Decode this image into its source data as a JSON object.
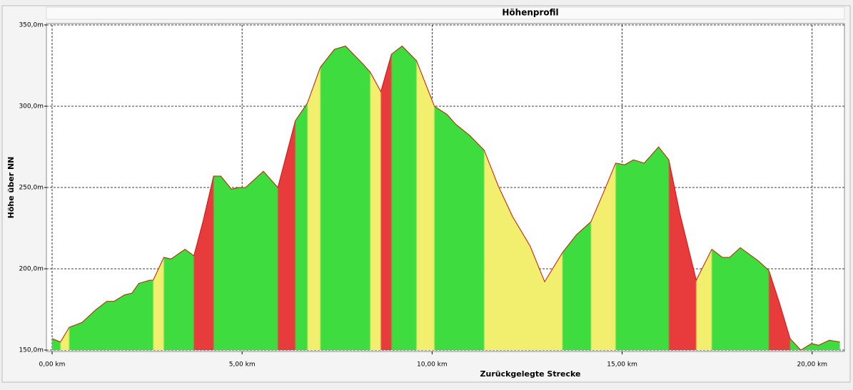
{
  "chart_data": {
    "type": "area",
    "title": "Höhenprofil",
    "x_label": "Zurückgelegte Strecke",
    "y_label": "Höhe über NN",
    "x": [
      0,
      0.22,
      0.45,
      0.79,
      1.16,
      1.44,
      1.63,
      1.91,
      2.1,
      2.28,
      2.57,
      2.66,
      2.94,
      3.13,
      3.31,
      3.5,
      3.73,
      3.97,
      4.25,
      4.44,
      4.72,
      4.91,
      5.09,
      5.56,
      5.94,
      6.4,
      6.72,
      7.06,
      7.43,
      7.72,
      8.18,
      8.37,
      8.65,
      8.93,
      9.21,
      9.59,
      10.06,
      10.39,
      10.62,
      10.99,
      11.37,
      11.74,
      12.12,
      12.58,
      12.96,
      13.43,
      13.8,
      14.18,
      14.51,
      14.83,
      15.07,
      15.3,
      15.58,
      15.96,
      16.23,
      16.52,
      16.95,
      17.36,
      17.64,
      17.83,
      18.11,
      18.58,
      18.86,
      19.14,
      19.42,
      19.7,
      19.98,
      20.17,
      20.45,
      20.73
    ],
    "values": [
      157,
      155,
      164,
      167,
      175,
      180,
      180,
      184,
      185,
      191,
      193,
      193,
      207,
      206,
      209,
      212,
      208,
      229,
      257,
      257,
      249,
      250,
      250,
      260,
      250,
      291,
      302,
      324,
      335,
      337,
      326,
      321,
      309,
      332,
      337,
      328,
      300,
      295,
      289,
      282,
      273,
      251,
      232,
      214,
      192,
      210,
      221,
      229,
      247,
      265,
      264,
      267,
      265,
      275,
      267,
      234,
      193,
      212,
      207,
      207,
      213,
      205,
      199,
      179,
      157,
      150,
      154,
      153,
      156,
      155
    ],
    "color": "#d01010",
    "slope_colors": [
      "#3fdc3f",
      "#f2ee6e",
      "#e83c3c"
    ],
    "xlim": [
      -0.15,
      20.85
    ],
    "ylim": [
      150,
      350
    ],
    "xticks": [
      {
        "value": 0,
        "label": "0,00 km"
      },
      {
        "value": 5,
        "label": "5,00 km"
      },
      {
        "value": 10,
        "label": "10,00 km"
      },
      {
        "value": 15,
        "label": "15,00 km"
      },
      {
        "value": 20,
        "label": "20,00 km"
      }
    ],
    "yticks": [
      {
        "value": 150,
        "label": "150,0m"
      },
      {
        "value": 200,
        "label": "200,0m"
      },
      {
        "value": 250,
        "label": "250,0m"
      },
      {
        "value": 300,
        "label": "300,0m"
      },
      {
        "value": 350,
        "label": "350,0m"
      }
    ],
    "grid": true
  }
}
